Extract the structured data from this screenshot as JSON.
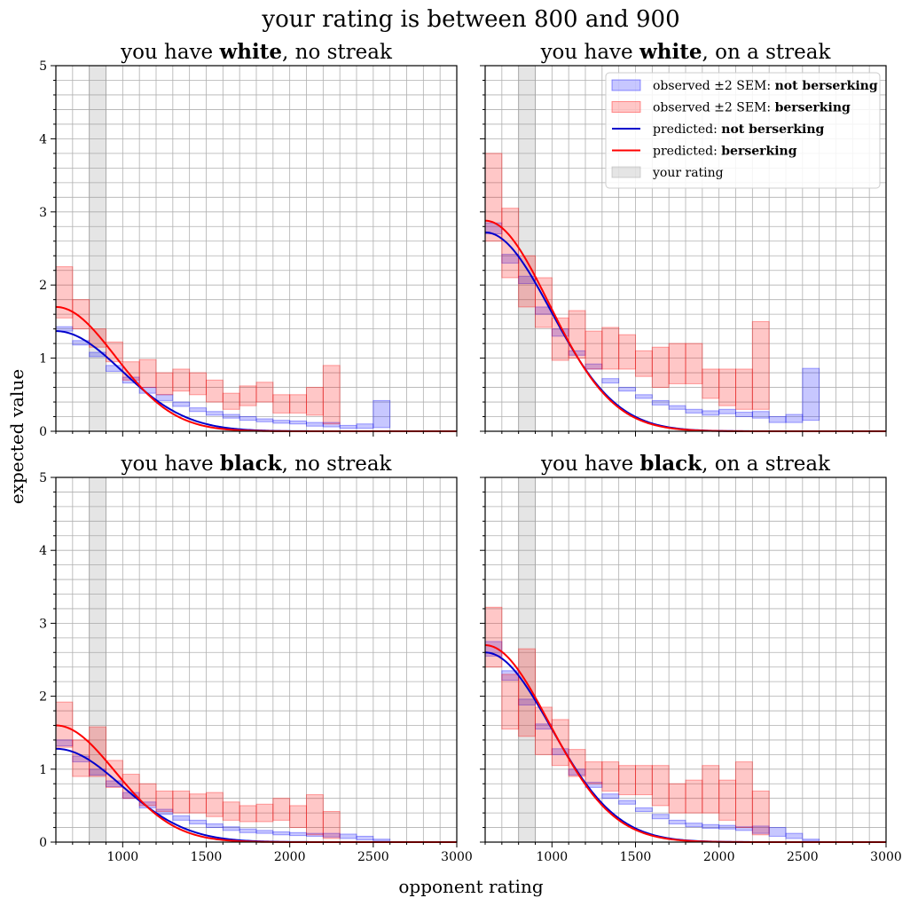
{
  "figure": {
    "title": "your rating is between   800 and   900",
    "xlabel": "opponent rating",
    "ylabel": "expected value"
  },
  "legend": {
    "placement": "top-right of the top-right panel",
    "entries": [
      {
        "key": "obs_nb",
        "prefix": "observed ±2 SEM: ",
        "bold": "not berserking",
        "kind": "patch",
        "color": "#0000ff"
      },
      {
        "key": "obs_b",
        "prefix": "observed ±2 SEM: ",
        "bold": "berserking",
        "kind": "patch",
        "color": "#ff0000"
      },
      {
        "key": "pred_nb",
        "prefix": "predicted: ",
        "bold": "not berserking",
        "kind": "line",
        "color": "#0000cc"
      },
      {
        "key": "pred_b",
        "prefix": "predicted: ",
        "bold": "berserking",
        "kind": "line",
        "color": "#ff0000"
      },
      {
        "key": "rating",
        "prefix": "your rating",
        "bold": "",
        "kind": "patch",
        "color": "#999999"
      }
    ]
  },
  "colors": {
    "not_berserking_band": "#0000ff",
    "berserking_band": "#ff0000",
    "predicted_not_berserking": "#0000cc",
    "predicted_berserking": "#ff0000",
    "your_rating_band": "#999999",
    "grid": "#b0b0b0"
  },
  "chart_data": [
    {
      "type": "area",
      "title": {
        "pre": "you have ",
        "bold": "white",
        "post": ", no streak"
      },
      "xlim": [
        600,
        3000
      ],
      "ylim": [
        0,
        5
      ],
      "xticks": [
        1000,
        1500,
        2000,
        2500,
        3000
      ],
      "yticks": [
        0,
        1,
        2,
        3,
        4,
        5
      ],
      "grid": true,
      "your_rating": [
        800,
        900
      ],
      "bin_edges": [
        600,
        700,
        800,
        900,
        1000,
        1100,
        1200,
        1300,
        1400,
        1500,
        1600,
        1700,
        1800,
        1900,
        2000,
        2100,
        2200,
        2300,
        2400,
        2500,
        2600
      ],
      "observed_not_berserking": [
        [
          1.37,
          1.43
        ],
        [
          1.18,
          1.24
        ],
        [
          1.02,
          1.08
        ],
        [
          0.82,
          0.9
        ],
        [
          0.66,
          0.74
        ],
        [
          0.52,
          0.6
        ],
        [
          0.42,
          0.5
        ],
        [
          0.34,
          0.4
        ],
        [
          0.27,
          0.32
        ],
        [
          0.22,
          0.27
        ],
        [
          0.18,
          0.23
        ],
        [
          0.15,
          0.2
        ],
        [
          0.13,
          0.17
        ],
        [
          0.11,
          0.15
        ],
        [
          0.1,
          0.14
        ],
        [
          0.07,
          0.12
        ],
        [
          0.06,
          0.12
        ],
        [
          0.04,
          0.08
        ],
        [
          0.04,
          0.1
        ],
        [
          0.05,
          0.42
        ]
      ],
      "observed_berserking": [
        [
          1.55,
          2.25
        ],
        [
          1.4,
          1.8
        ],
        [
          1.15,
          1.4
        ],
        [
          0.95,
          1.22
        ],
        [
          0.7,
          0.95
        ],
        [
          0.6,
          0.98
        ],
        [
          0.5,
          0.8
        ],
        [
          0.55,
          0.85
        ],
        [
          0.5,
          0.8
        ],
        [
          0.4,
          0.7
        ],
        [
          0.3,
          0.52
        ],
        [
          0.35,
          0.62
        ],
        [
          0.4,
          0.67
        ],
        [
          0.25,
          0.5
        ],
        [
          0.25,
          0.5
        ],
        [
          0.22,
          0.6
        ],
        [
          0.1,
          0.9
        ]
      ],
      "predicted": {
        "not_berserking": {
          "a": 1.37,
          "b": 0.0018
        },
        "berserking": {
          "a": 1.7,
          "b": 0.002
        }
      }
    },
    {
      "type": "area",
      "title": {
        "pre": "you have ",
        "bold": "white",
        "post": ", on a streak"
      },
      "xlim": [
        600,
        3000
      ],
      "ylim": [
        0,
        5
      ],
      "xticks": [
        1000,
        1500,
        2000,
        2500,
        3000
      ],
      "yticks": [
        0,
        1,
        2,
        3,
        4,
        5
      ],
      "grid": true,
      "your_rating": [
        800,
        900
      ],
      "bin_edges": [
        600,
        700,
        800,
        900,
        1000,
        1100,
        1200,
        1300,
        1400,
        1500,
        1600,
        1700,
        1800,
        1900,
        2000,
        2100,
        2200,
        2300,
        2400,
        2500,
        2600
      ],
      "observed_not_berserking": [
        [
          2.7,
          2.85
        ],
        [
          2.3,
          2.42
        ],
        [
          2.02,
          2.12
        ],
        [
          1.6,
          1.7
        ],
        [
          1.3,
          1.4
        ],
        [
          1.04,
          1.1
        ],
        [
          0.85,
          0.92
        ],
        [
          0.66,
          0.72
        ],
        [
          0.55,
          0.6
        ],
        [
          0.45,
          0.5
        ],
        [
          0.36,
          0.42
        ],
        [
          0.3,
          0.35
        ],
        [
          0.25,
          0.3
        ],
        [
          0.22,
          0.28
        ],
        [
          0.24,
          0.3
        ],
        [
          0.2,
          0.26
        ],
        [
          0.18,
          0.27
        ],
        [
          0.12,
          0.2
        ],
        [
          0.12,
          0.23
        ],
        [
          0.15,
          0.86
        ]
      ],
      "observed_berserking": [
        [
          2.6,
          3.8
        ],
        [
          2.1,
          3.05
        ],
        [
          1.7,
          2.4
        ],
        [
          1.42,
          2.1
        ],
        [
          0.97,
          1.55
        ],
        [
          1.0,
          1.65
        ],
        [
          0.85,
          1.37
        ],
        [
          0.85,
          1.42
        ],
        [
          0.85,
          1.32
        ],
        [
          0.75,
          1.1
        ],
        [
          0.6,
          1.15
        ],
        [
          0.65,
          1.2
        ],
        [
          0.65,
          1.2
        ],
        [
          0.45,
          0.85
        ],
        [
          0.35,
          0.85
        ],
        [
          0.3,
          0.85
        ],
        [
          0.3,
          1.5
        ]
      ],
      "predicted": {
        "not_berserking": {
          "a": 2.72,
          "b": 0.0018
        },
        "berserking": {
          "a": 2.88,
          "b": 0.00185
        }
      }
    },
    {
      "type": "area",
      "title": {
        "pre": "you have ",
        "bold": "black",
        "post": ", no streak"
      },
      "xlim": [
        600,
        3000
      ],
      "ylim": [
        0,
        5
      ],
      "xticks": [
        1000,
        1500,
        2000,
        2500,
        3000
      ],
      "yticks": [
        0,
        1,
        2,
        3,
        4,
        5
      ],
      "grid": true,
      "your_rating": [
        800,
        900
      ],
      "bin_edges": [
        600,
        700,
        800,
        900,
        1000,
        1100,
        1200,
        1300,
        1400,
        1500,
        1600,
        1700,
        1800,
        1900,
        2000,
        2100,
        2200,
        2300,
        2400,
        2500,
        2600
      ],
      "observed_not_berserking": [
        [
          1.32,
          1.4
        ],
        [
          1.1,
          1.18
        ],
        [
          0.92,
          1.0
        ],
        [
          0.76,
          0.84
        ],
        [
          0.6,
          0.68
        ],
        [
          0.47,
          0.55
        ],
        [
          0.38,
          0.45
        ],
        [
          0.3,
          0.36
        ],
        [
          0.25,
          0.3
        ],
        [
          0.2,
          0.25
        ],
        [
          0.16,
          0.21
        ],
        [
          0.13,
          0.18
        ],
        [
          0.12,
          0.16
        ],
        [
          0.1,
          0.14
        ],
        [
          0.09,
          0.13
        ],
        [
          0.08,
          0.12
        ],
        [
          0.07,
          0.12
        ],
        [
          0.05,
          0.11
        ],
        [
          0.03,
          0.08
        ],
        [
          0.02,
          0.04
        ]
      ],
      "observed_berserking": [
        [
          1.3,
          1.92
        ],
        [
          0.9,
          1.4
        ],
        [
          0.9,
          1.58
        ],
        [
          0.75,
          1.12
        ],
        [
          0.6,
          0.93
        ],
        [
          0.5,
          0.8
        ],
        [
          0.42,
          0.7
        ],
        [
          0.4,
          0.7
        ],
        [
          0.4,
          0.66
        ],
        [
          0.35,
          0.68
        ],
        [
          0.3,
          0.55
        ],
        [
          0.28,
          0.5
        ],
        [
          0.28,
          0.52
        ],
        [
          0.3,
          0.6
        ],
        [
          0.2,
          0.5
        ],
        [
          0.1,
          0.65
        ],
        [
          0.05,
          0.42
        ]
      ],
      "predicted": {
        "not_berserking": {
          "a": 1.28,
          "b": 0.0018
        },
        "berserking": {
          "a": 1.6,
          "b": 0.002
        }
      }
    },
    {
      "type": "area",
      "title": {
        "pre": "you have ",
        "bold": "black",
        "post": ", on a streak"
      },
      "xlim": [
        600,
        3000
      ],
      "ylim": [
        0,
        5
      ],
      "xticks": [
        1000,
        1500,
        2000,
        2500,
        3000
      ],
      "yticks": [
        0,
        1,
        2,
        3,
        4,
        5
      ],
      "grid": true,
      "your_rating": [
        800,
        900
      ],
      "bin_edges": [
        600,
        700,
        800,
        900,
        1000,
        1100,
        1200,
        1300,
        1400,
        1500,
        1600,
        1700,
        1800,
        1900,
        2000,
        2100,
        2200,
        2300,
        2400,
        2500,
        2600
      ],
      "observed_not_berserking": [
        [
          2.55,
          2.75
        ],
        [
          2.22,
          2.35
        ],
        [
          1.88,
          1.96
        ],
        [
          1.55,
          1.62
        ],
        [
          1.2,
          1.28
        ],
        [
          0.92,
          1.0
        ],
        [
          0.75,
          0.82
        ],
        [
          0.6,
          0.66
        ],
        [
          0.52,
          0.57
        ],
        [
          0.42,
          0.47
        ],
        [
          0.32,
          0.38
        ],
        [
          0.25,
          0.3
        ],
        [
          0.21,
          0.26
        ],
        [
          0.19,
          0.24
        ],
        [
          0.18,
          0.23
        ],
        [
          0.16,
          0.21
        ],
        [
          0.12,
          0.22
        ],
        [
          0.08,
          0.2
        ],
        [
          0.05,
          0.12
        ],
        [
          0.02,
          0.04
        ]
      ],
      "observed_berserking": [
        [
          2.4,
          3.22
        ],
        [
          1.55,
          2.3
        ],
        [
          1.45,
          2.65
        ],
        [
          1.2,
          1.85
        ],
        [
          1.05,
          1.68
        ],
        [
          0.9,
          1.27
        ],
        [
          0.8,
          1.1
        ],
        [
          0.7,
          1.1
        ],
        [
          0.65,
          1.05
        ],
        [
          0.65,
          1.05
        ],
        [
          0.5,
          1.05
        ],
        [
          0.4,
          0.8
        ],
        [
          0.4,
          0.85
        ],
        [
          0.4,
          1.05
        ],
        [
          0.3,
          0.85
        ],
        [
          0.2,
          1.1
        ],
        [
          0.1,
          0.7
        ]
      ],
      "predicted": {
        "not_berserking": {
          "a": 2.6,
          "b": 0.0018
        },
        "berserking": {
          "a": 2.7,
          "b": 0.00185
        }
      }
    }
  ]
}
